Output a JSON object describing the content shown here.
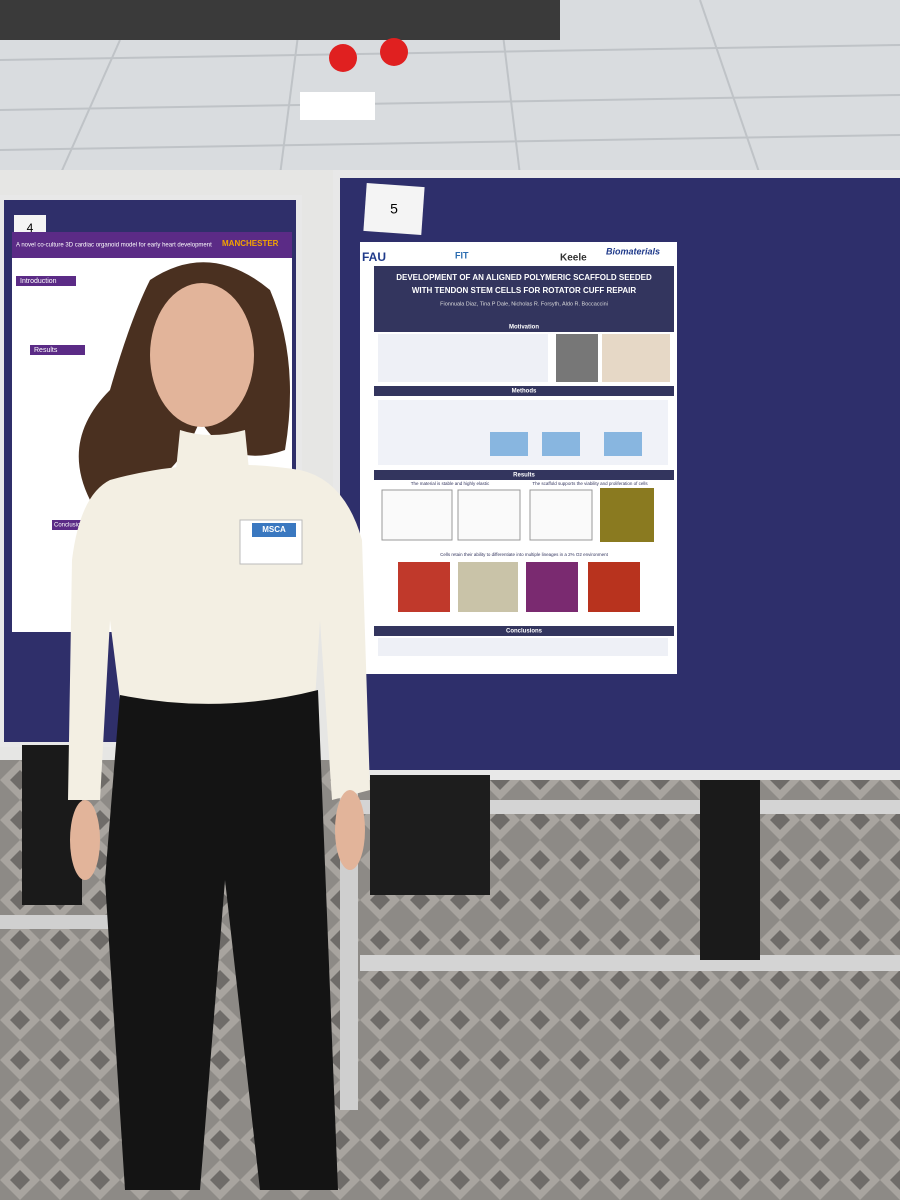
{
  "left_board": {
    "number": "4",
    "poster": {
      "title": "A novel co-culture 3D cardiac organoid model for early heart development",
      "logo": "MANCHESTER",
      "sections": [
        "Introduction",
        "Results",
        "Conclusions"
      ]
    }
  },
  "right_board": {
    "number": "5",
    "poster": {
      "logos": [
        "FAU",
        "FIT",
        "Keele",
        "Biomaterials"
      ],
      "title_lines": [
        "DEVELOPMENT OF AN ALIGNED POLYMERIC SCAFFOLD SEEDED",
        "WITH TENDON STEM CELLS FOR ROTATOR CUFF REPAIR"
      ],
      "authors": "Fionnuala Diaz, Tina P Dale, Nicholas R. Forsyth, Aldo R. Boccaccini",
      "sections": [
        "Motivation",
        "Methods",
        "Results",
        "Conclusions"
      ],
      "result_headings": [
        "The material is stable and highly elastic",
        "The scaffold supports the viability and proliferation of cells",
        "Cells retain their ability to differentiate into multiple lineages in a 2% O2 environment"
      ]
    }
  },
  "badge": {
    "label": "MSCA"
  }
}
